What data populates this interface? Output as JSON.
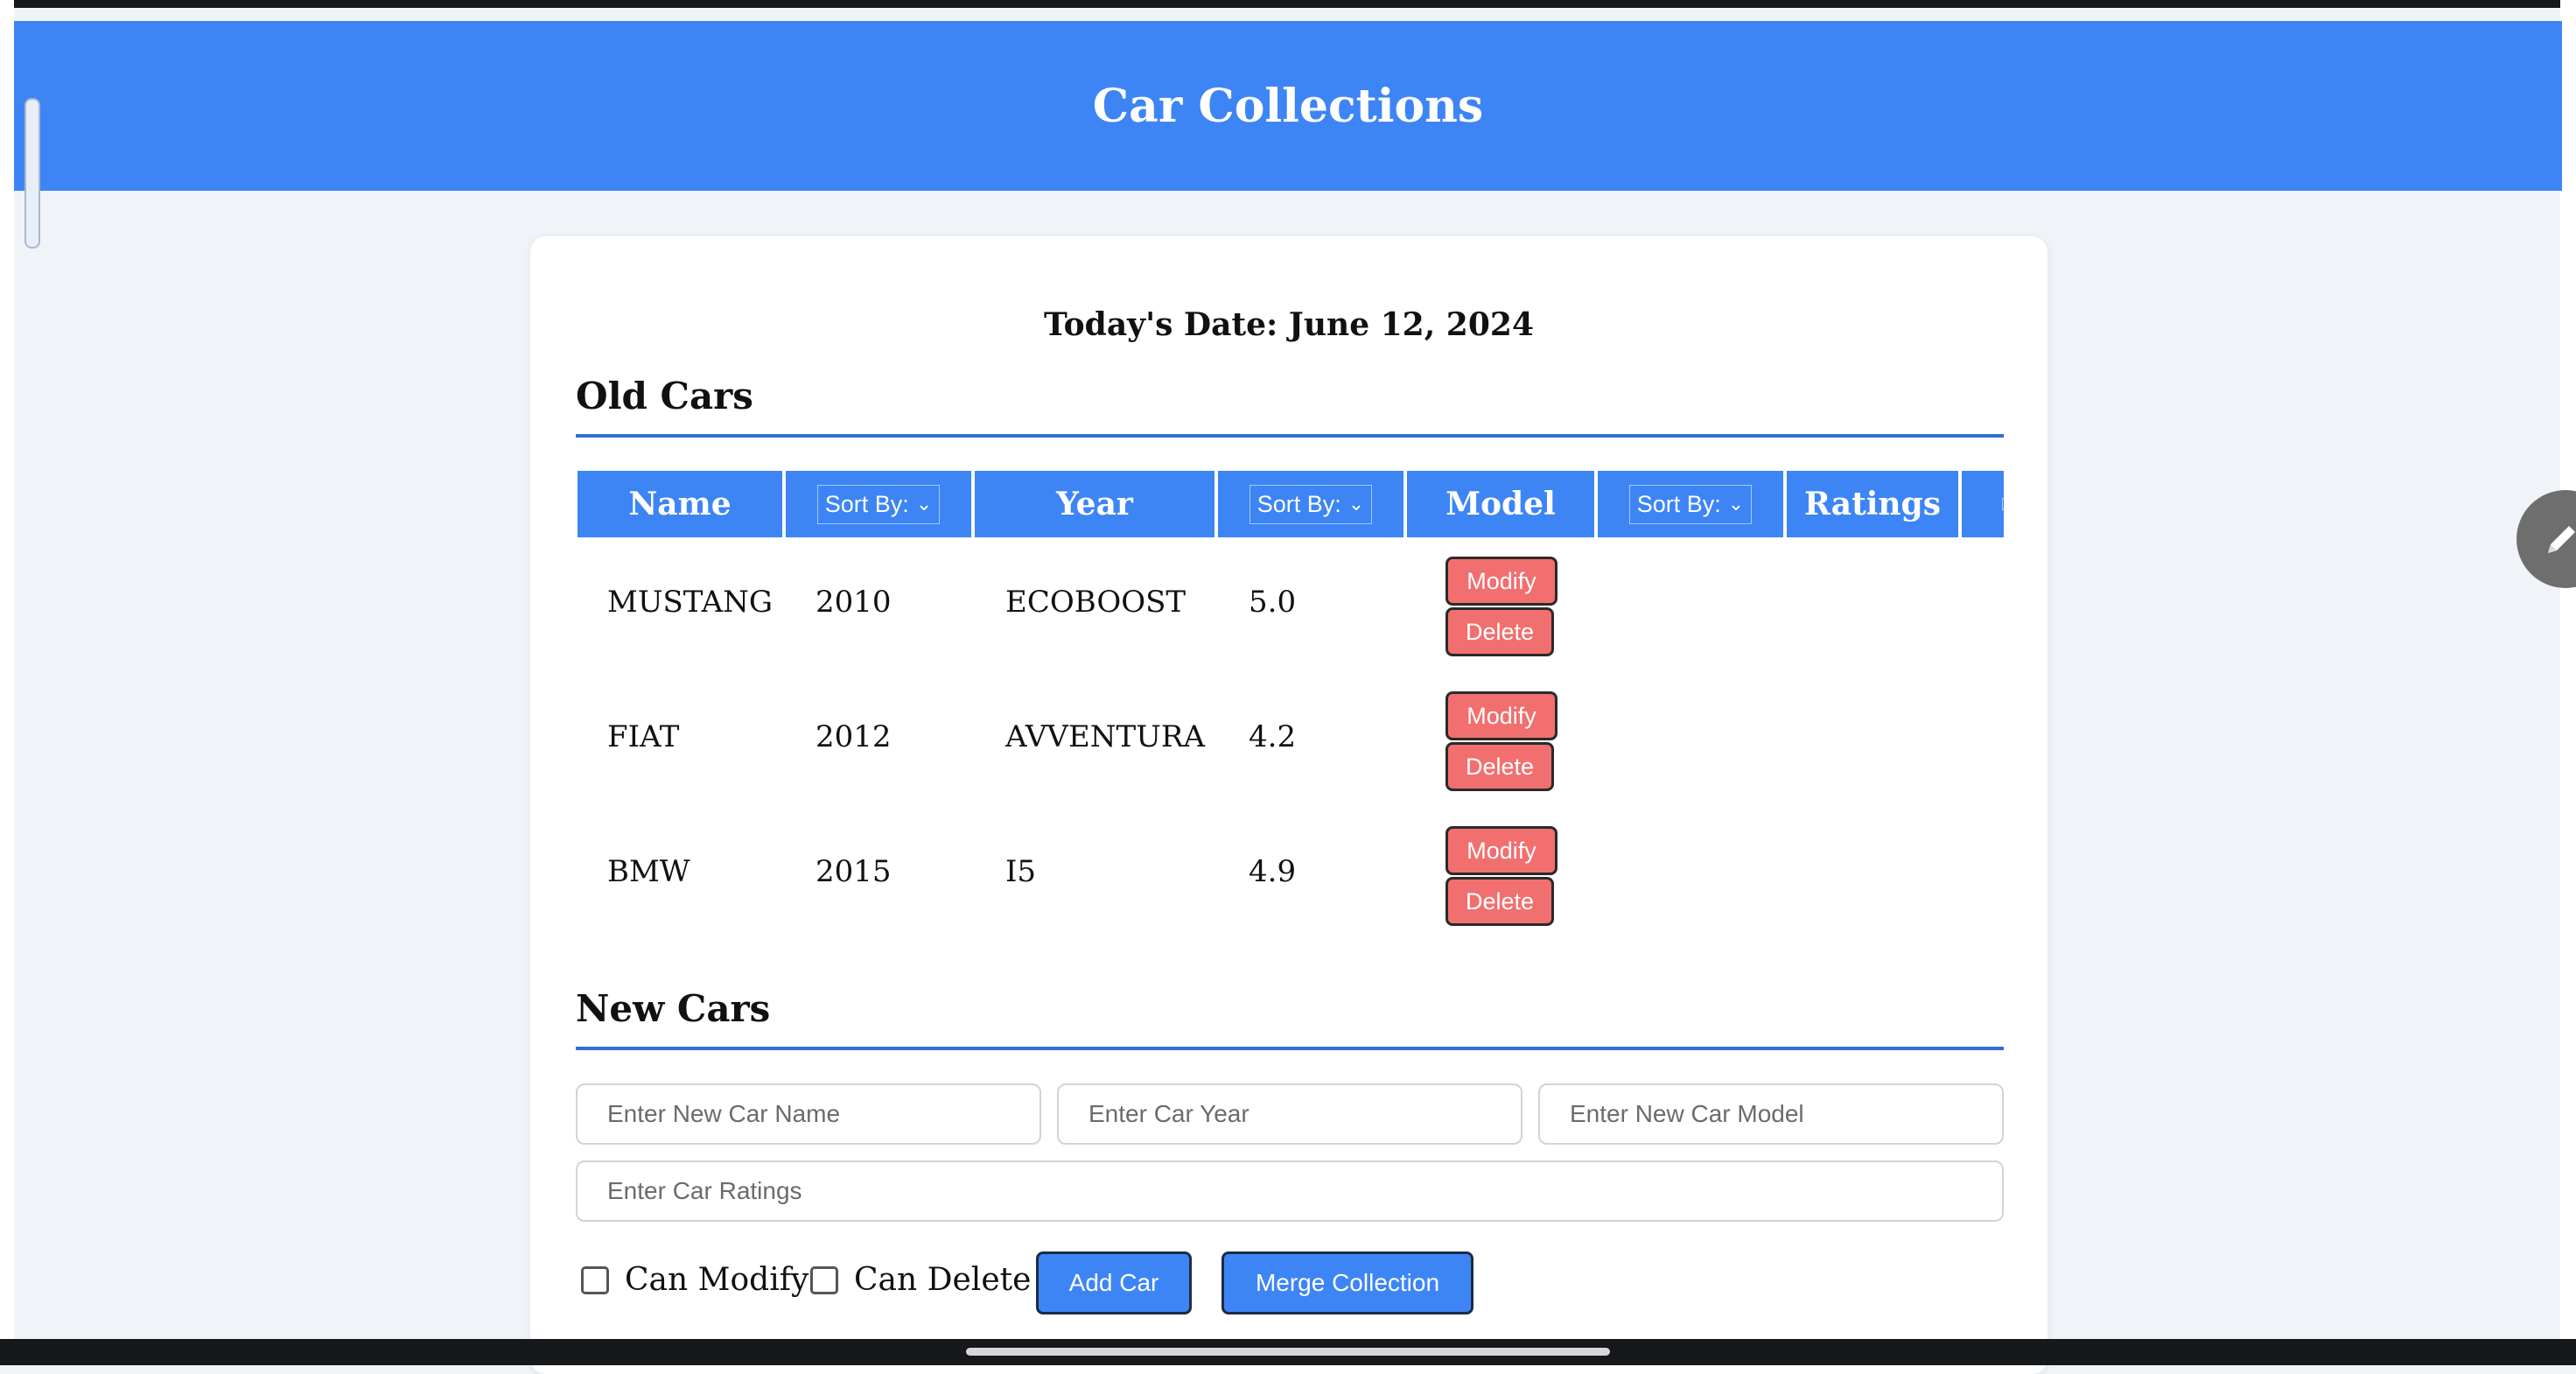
{
  "header": {
    "title": "Car Collections"
  },
  "today": "Today's Date: June 12, 2024",
  "old_cars": {
    "title": "Old Cars",
    "columns": {
      "name": "Name",
      "year": "Year",
      "model": "Model",
      "ratings": "Ratings",
      "sort_label": "Sort By:"
    },
    "rows": [
      {
        "name": "MUSTANG",
        "year": "2010",
        "model": "ECOBOOST",
        "rating": "5.0",
        "modify": "Modify",
        "delete": "Delete"
      },
      {
        "name": "FIAT",
        "year": "2012",
        "model": "AVVENTURA",
        "rating": "4.2",
        "modify": "Modify",
        "delete": "Delete"
      },
      {
        "name": "BMW",
        "year": "2015",
        "model": "I5",
        "rating": "4.9",
        "modify": "Modify",
        "delete": "Delete"
      }
    ]
  },
  "new_cars": {
    "title": "New Cars",
    "placeholders": {
      "name": "Enter New Car Name",
      "year": "Enter Car Year",
      "model": "Enter New Car Model",
      "ratings": "Enter Car Ratings"
    },
    "can_modify": "Can Modify",
    "can_delete": "Can Delete",
    "add_car": "Add Car",
    "merge": "Merge Collection"
  },
  "colors": {
    "accent": "#3d85f5",
    "danger": "#f26f6f",
    "background": "#f0f4f9",
    "rule": "#2f6fd6"
  },
  "icons": {
    "fab": "pencil-icon",
    "sort": "chevron-down-icon"
  }
}
